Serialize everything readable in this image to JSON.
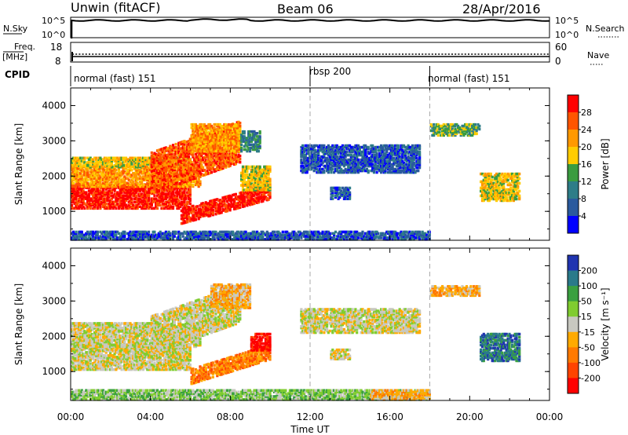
{
  "header": {
    "radar": "Unwin (fitACF)",
    "beam": "Beam 06",
    "date": "28/Apr/2016"
  },
  "top_panels": {
    "nsky_label": "N.Sky",
    "nsky_ticks": [
      "10^5",
      "10^0"
    ],
    "nsearch_label": "N.Search",
    "nsearch_ticks": [
      "10^5",
      "10^0"
    ],
    "freq_label": "Freq.",
    "freq_unit": "[MHz]",
    "freq_ticks": [
      "18",
      "8"
    ],
    "nave_label": "Nave",
    "nave_ticks": [
      "60",
      "0"
    ],
    "cpid_label": "CPID"
  },
  "cpid_segments": [
    {
      "name": "normal (fast) 151",
      "start_hr": 0,
      "end_hr": 12
    },
    {
      "name": "rbsp 200",
      "start_hr": 12,
      "end_hr": 18
    },
    {
      "name": "normal (fast) 151",
      "start_hr": 18,
      "end_hr": 24
    }
  ],
  "chart_data": [
    {
      "type": "heatmap",
      "title": "",
      "xlabel": "Time UT",
      "ylabel": "Slant Range [km]",
      "xlim": [
        0,
        24
      ],
      "ylim": [
        180,
        4500
      ],
      "x_ticks": [
        "00:00",
        "04:00",
        "08:00",
        "12:00",
        "16:00",
        "20:00",
        "00:00"
      ],
      "y_ticks": [
        1000,
        2000,
        3000,
        4000
      ],
      "colorbar": {
        "label": "Power [dB]",
        "ticks": [
          "28",
          "24",
          "20",
          "16",
          "12",
          "8",
          "4"
        ],
        "colors": [
          "#ff0000",
          "#ff5500",
          "#ff9900",
          "#ffcc00",
          "#3a9c40",
          "#2e7d88",
          "#2a5a9e",
          "#0000ff"
        ]
      },
      "regions": [
        {
          "t0": 0.0,
          "t1": 6.0,
          "r0": 1080,
          "r1": 1800,
          "t1_end": 6.0,
          "r_shift": 0,
          "color_index": 0
        },
        {
          "t0": 0.0,
          "t1": 6.5,
          "r0": 1700,
          "r1": 2300,
          "r_shift": 0,
          "color_index": 2
        },
        {
          "t0": 0.0,
          "t1": 6.0,
          "r0": 2250,
          "r1": 2550,
          "r_shift": 0,
          "color_index": 3
        },
        {
          "t0": 4.0,
          "t1": 8.5,
          "r0": 1500,
          "r1": 2700,
          "r_shift": 900,
          "color_index": 1
        },
        {
          "t0": 6.0,
          "t1": 8.5,
          "r0": 2700,
          "r1": 3500,
          "r_shift": 0,
          "color_index": 2
        },
        {
          "t0": 5.5,
          "t1": 10.0,
          "r0": 650,
          "r1": 1100,
          "r_shift": 700,
          "color_index": 0
        },
        {
          "t0": 8.5,
          "t1": 10.0,
          "r0": 1600,
          "r1": 2300,
          "r_shift": 0,
          "color_index": 3
        },
        {
          "t0": 8.5,
          "t1": 9.5,
          "r0": 2700,
          "r1": 3300,
          "r_shift": 0,
          "color_index": 5
        },
        {
          "t0": 11.5,
          "t1": 17.5,
          "r0": 2100,
          "r1": 2900,
          "r_shift": 0,
          "color_index": 6
        },
        {
          "t0": 13.0,
          "t1": 14.0,
          "r0": 1350,
          "r1": 1700,
          "r_shift": 0,
          "color_index": 6
        },
        {
          "t0": 0.0,
          "t1": 18.0,
          "r0": 200,
          "r1": 450,
          "r_shift": 0,
          "color_index": 6
        },
        {
          "t0": 18.0,
          "t1": 20.5,
          "r0": 3150,
          "r1": 3500,
          "r_shift": 0,
          "color_index": 4
        },
        {
          "t0": 20.5,
          "t1": 22.5,
          "r0": 1300,
          "r1": 2100,
          "r_shift": 0,
          "color_index": 3
        }
      ]
    },
    {
      "type": "heatmap",
      "title": "",
      "xlabel": "Time UT",
      "ylabel": "Slant Range [km]",
      "xlim": [
        0,
        24
      ],
      "ylim": [
        180,
        4500
      ],
      "x_ticks": [
        "00:00",
        "04:00",
        "08:00",
        "12:00",
        "16:00",
        "20:00",
        "00:00"
      ],
      "y_ticks": [
        1000,
        2000,
        3000,
        4000
      ],
      "colorbar": {
        "label": "Velocity [m s⁻¹]",
        "ticks": [
          "200",
          "100",
          "50",
          "15",
          "-15",
          "-50",
          "-100",
          "-200"
        ],
        "colors": [
          "#2034b0",
          "#2a7a8a",
          "#3aa040",
          "#80cc30",
          "#c8c8c0",
          "#ffaa00",
          "#ff7a00",
          "#ff4400",
          "#ff0000"
        ]
      },
      "regions": [
        {
          "t0": 0.0,
          "t1": 6.0,
          "r0": 1050,
          "r1": 1800,
          "r_shift": 0,
          "color_index": 4
        },
        {
          "t0": 0.0,
          "t1": 6.5,
          "r0": 1700,
          "r1": 2400,
          "r_shift": 0,
          "color_index": 4
        },
        {
          "t0": 4.0,
          "t1": 8.5,
          "r0": 1500,
          "r1": 2600,
          "r_shift": 900,
          "color_index": 4
        },
        {
          "t0": 6.0,
          "t1": 10.0,
          "r0": 650,
          "r1": 1100,
          "r_shift": 700,
          "color_index": 6
        },
        {
          "t0": 9.0,
          "t1": 10.0,
          "r0": 1600,
          "r1": 2100,
          "r_shift": 0,
          "color_index": 8
        },
        {
          "t0": 7.0,
          "t1": 9.0,
          "r0": 2800,
          "r1": 3500,
          "r_shift": 0,
          "color_index": 5
        },
        {
          "t0": 11.5,
          "t1": 17.5,
          "r0": 2100,
          "r1": 2800,
          "r_shift": 0,
          "color_index": 4
        },
        {
          "t0": 13.0,
          "t1": 14.0,
          "r0": 1350,
          "r1": 1650,
          "r_shift": 0,
          "color_index": 4
        },
        {
          "t0": 0.0,
          "t1": 18.0,
          "r0": 200,
          "r1": 500,
          "r_shift": 0,
          "color_index": 3
        },
        {
          "t0": 15.0,
          "t1": 18.0,
          "r0": 200,
          "r1": 500,
          "r_shift": 0,
          "color_index": 5
        },
        {
          "t0": 18.0,
          "t1": 20.5,
          "r0": 3150,
          "r1": 3450,
          "r_shift": 0,
          "color_index": 5
        },
        {
          "t0": 20.5,
          "t1": 22.5,
          "r0": 1300,
          "r1": 2100,
          "r_shift": 0,
          "color_index": 1
        }
      ]
    }
  ]
}
